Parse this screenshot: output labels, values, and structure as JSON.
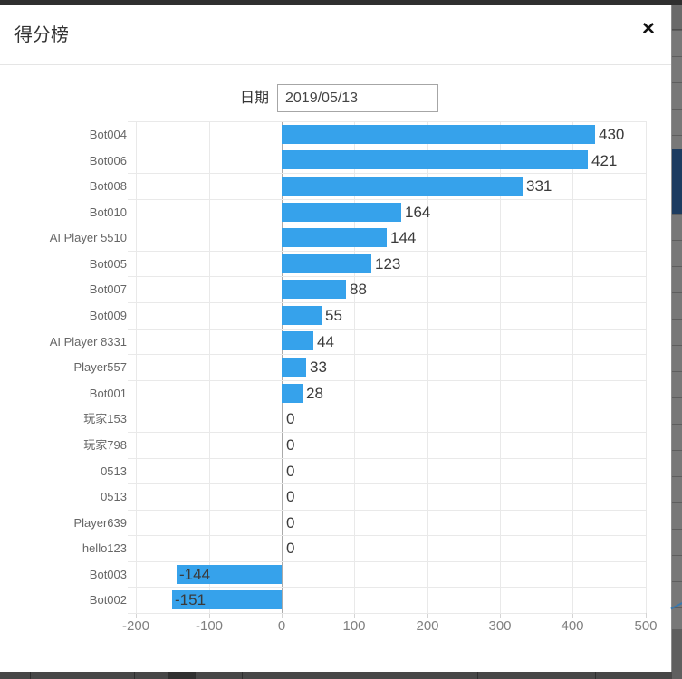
{
  "modal": {
    "title": "得分榜",
    "close_icon": "✕",
    "date_label": "日期",
    "date_value": "2019/05/13"
  },
  "chart_data": {
    "type": "bar",
    "orientation": "horizontal",
    "title": "",
    "xlabel": "",
    "ylabel": "",
    "categories": [
      "Bot004",
      "Bot006",
      "Bot008",
      "Bot010",
      "AI Player 5510",
      "Bot005",
      "Bot007",
      "Bot009",
      "AI Player 8331",
      "Player557",
      "Bot001",
      "玩家153",
      "玩家798",
      "0513",
      "0513",
      "Player639",
      "hello123",
      "Bot003",
      "Bot002"
    ],
    "values": [
      430,
      421,
      331,
      164,
      144,
      123,
      88,
      55,
      44,
      33,
      28,
      0,
      0,
      0,
      0,
      0,
      0,
      -144,
      -151
    ],
    "x_ticks": [
      -200,
      -100,
      0,
      100,
      200,
      300,
      400,
      500
    ],
    "xlim": [
      -200,
      500
    ],
    "grid": true,
    "legend": false,
    "value_labels": true,
    "bar_color": "#36A2EB",
    "grid_color": "#e9e9e9",
    "zero_line_color": "#ababab",
    "value_label_color": "#3a3a3a",
    "category_label_color": "#666666",
    "tick_label_color": "#808080"
  },
  "colors": {
    "modal_bg": "#ffffff",
    "header_border": "#e5e5e5",
    "backdrop_navy": "#1d3c60",
    "backdrop_gray": "#757575",
    "bottom_bar": "#474747"
  }
}
